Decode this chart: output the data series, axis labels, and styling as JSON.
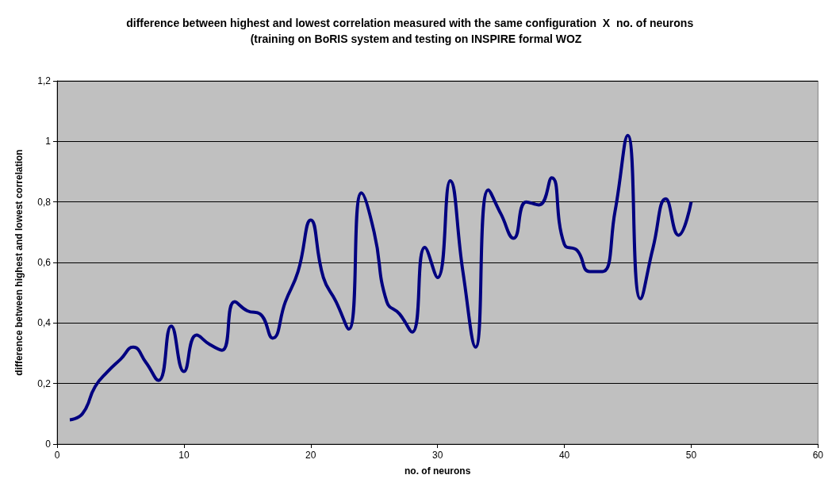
{
  "chart_data": {
    "type": "line",
    "title": "difference between highest and lowest correlation measured with the same configuration  X  no. of neurons    (training on BoRIS system and testing on INSPIRE formal WOZ",
    "xlabel": "no. of neurons",
    "ylabel": "difference between highest and lowest correlation",
    "x": [
      1,
      2,
      3,
      4,
      5,
      6,
      7,
      8,
      9,
      10,
      11,
      12,
      13,
      14,
      15,
      16,
      17,
      18,
      19,
      20,
      21,
      22,
      23,
      24,
      25,
      26,
      27,
      28,
      29,
      30,
      31,
      32,
      33,
      34,
      35,
      36,
      37,
      38,
      39,
      40,
      41,
      42,
      43,
      44,
      45,
      46,
      47,
      48,
      49,
      50
    ],
    "series": [
      {
        "color": "#000080",
        "values": [
          0.08,
          0.1,
          0.19,
          0.24,
          0.28,
          0.32,
          0.27,
          0.21,
          0.39,
          0.24,
          0.36,
          0.33,
          0.31,
          0.47,
          0.44,
          0.43,
          0.35,
          0.47,
          0.57,
          0.74,
          0.55,
          0.47,
          0.38,
          0.83,
          0.7,
          0.47,
          0.43,
          0.37,
          0.65,
          0.55,
          0.87,
          0.57,
          0.32,
          0.84,
          0.76,
          0.68,
          0.8,
          0.79,
          0.88,
          0.66,
          0.64,
          0.57,
          0.57,
          0.77,
          1.02,
          0.48,
          0.65,
          0.81,
          0.69,
          0.8
        ]
      }
    ],
    "xlim": [
      0,
      60
    ],
    "xticks": [
      0,
      10,
      20,
      30,
      40,
      50,
      60
    ],
    "ylim": [
      0,
      1.2
    ],
    "yticks": [
      0,
      {
        "value": 0.2,
        "label": "0,2"
      },
      {
        "value": 0.4,
        "label": "0,4"
      },
      {
        "value": 0.6,
        "label": "0,6"
      },
      {
        "value": 0.8,
        "label": "0,8"
      },
      1,
      {
        "value": 1.2,
        "label": "1,2"
      }
    ],
    "grid": "y",
    "marker": "none",
    "line_style": "solid"
  }
}
